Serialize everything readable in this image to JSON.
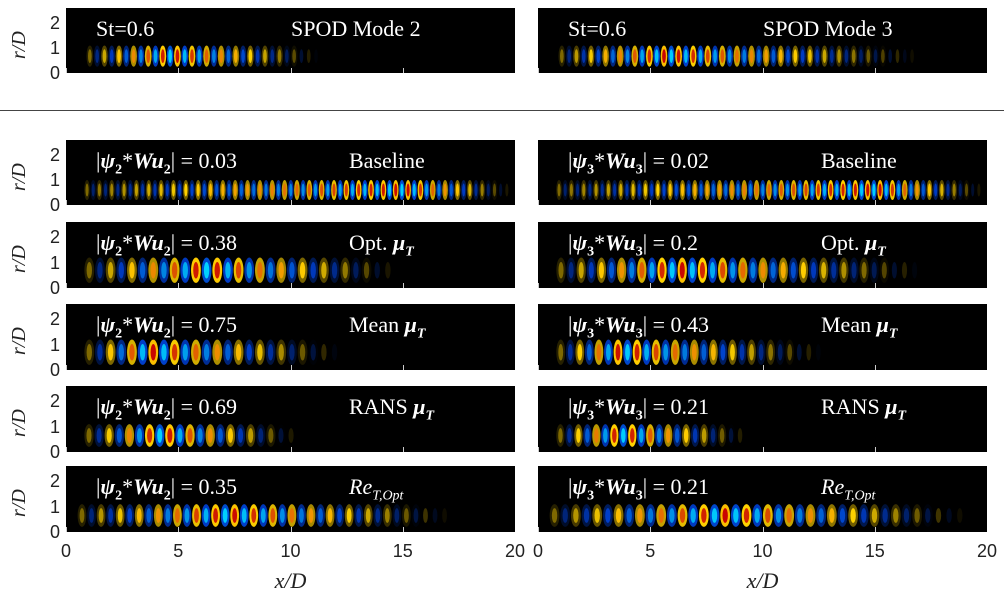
{
  "chart_data": [
    {
      "type": "heatmap",
      "panel": "top-left",
      "labels": [
        "St=0.6",
        "SPOD Mode 2"
      ],
      "ylabel": "r/D",
      "yticks": [
        "2",
        "1",
        "0"
      ],
      "xlim": [
        0,
        20
      ],
      "ylim": [
        0,
        2.6
      ],
      "wave": {
        "start": 0.9,
        "end": 11.5,
        "peak": 4.5,
        "wavelength": 0.65,
        "rmin": 0.25,
        "rmax": 1.1
      }
    },
    {
      "type": "heatmap",
      "panel": "top-right",
      "labels": [
        "St=0.6",
        "SPOD Mode 3"
      ],
      "xlim": [
        0,
        20
      ],
      "ylim": [
        0,
        2.6
      ],
      "wave": {
        "start": 0.9,
        "end": 17.5,
        "peak": 5.5,
        "wavelength": 0.65,
        "rmin": 0.25,
        "rmax": 1.1
      }
    },
    {
      "type": "heatmap",
      "panel": "left-1",
      "labels": [
        "|ψ₂*Wu₂| = 0.03",
        "Baseline"
      ],
      "ylabel": "r/D",
      "yticks": [
        "2",
        "1",
        "0"
      ],
      "xlim": [
        0,
        20
      ],
      "ylim": [
        0,
        2.6
      ],
      "wave": {
        "start": 0.8,
        "end": 20,
        "peak": 15,
        "wavelength": 0.55,
        "rmin": 0.2,
        "rmax": 1.0
      }
    },
    {
      "type": "heatmap",
      "panel": "left-2",
      "labels": [
        "|ψ₂*Wu₂| = 0.38",
        "Opt. μT"
      ],
      "ylabel": "r/D",
      "yticks": [
        "2",
        "1",
        "0"
      ],
      "xlim": [
        0,
        20
      ],
      "ylim": [
        0,
        2.6
      ],
      "wave": {
        "start": 0.8,
        "end": 15,
        "peak": 6,
        "wavelength": 0.95,
        "rmin": 0.2,
        "rmax": 1.2
      }
    },
    {
      "type": "heatmap",
      "panel": "left-3",
      "labels": [
        "|ψ₂*Wu₂| = 0.75",
        "Mean μT"
      ],
      "ylabel": "r/D",
      "yticks": [
        "2",
        "1",
        "0"
      ],
      "xlim": [
        0,
        20
      ],
      "ylim": [
        0,
        2.6
      ],
      "wave": {
        "start": 0.8,
        "end": 12.5,
        "peak": 3.5,
        "wavelength": 0.95,
        "rmin": 0.2,
        "rmax": 1.2
      }
    },
    {
      "type": "heatmap",
      "panel": "left-4",
      "labels": [
        "|ψ₂*Wu₂| = 0.69",
        "RANS μT"
      ],
      "ylabel": "r/D",
      "yticks": [
        "2",
        "1",
        "0"
      ],
      "xlim": [
        0,
        20
      ],
      "ylim": [
        0,
        2.6
      ],
      "wave": {
        "start": 0.8,
        "end": 10.5,
        "peak": 4,
        "wavelength": 0.9,
        "rmin": 0.2,
        "rmax": 1.1
      }
    },
    {
      "type": "heatmap",
      "panel": "left-5",
      "labels": [
        "|ψ₂*Wu₂| = 0.35",
        "ReT,Opt"
      ],
      "ylabel": "r/D",
      "yticks": [
        "2",
        "1",
        "0"
      ],
      "xlim": [
        0,
        20
      ],
      "ylim": [
        0,
        2.6
      ],
      "wave": {
        "start": 0.5,
        "end": 17.5,
        "peak": 7,
        "wavelength": 0.85,
        "rmin": 0.2,
        "rmax": 1.1
      }
    },
    {
      "type": "heatmap",
      "panel": "right-1",
      "labels": [
        "|ψ₃*Wu₃| = 0.02",
        "Baseline"
      ],
      "xlim": [
        0,
        20
      ],
      "ylim": [
        0,
        2.6
      ],
      "wave": {
        "start": 0.8,
        "end": 20,
        "peak": 15,
        "wavelength": 0.55,
        "rmin": 0.2,
        "rmax": 1.0
      }
    },
    {
      "type": "heatmap",
      "panel": "right-2",
      "labels": [
        "|ψ₃*Wu₃| = 0.2",
        "Opt. μT"
      ],
      "xlim": [
        0,
        20
      ],
      "ylim": [
        0,
        2.6
      ],
      "wave": {
        "start": 0.8,
        "end": 17.5,
        "peak": 6,
        "wavelength": 0.9,
        "rmin": 0.2,
        "rmax": 1.2
      }
    },
    {
      "type": "heatmap",
      "panel": "right-3",
      "labels": [
        "|ψ₃*Wu₃| = 0.43",
        "Mean μT"
      ],
      "xlim": [
        0,
        20
      ],
      "ylim": [
        0,
        2.6
      ],
      "wave": {
        "start": 0.8,
        "end": 13,
        "peak": 3.5,
        "wavelength": 0.85,
        "rmin": 0.2,
        "rmax": 1.2
      }
    },
    {
      "type": "heatmap",
      "panel": "right-4",
      "labels": [
        "|ψ₃*Wu₃| = 0.21",
        "RANS μT"
      ],
      "xlim": [
        0,
        20
      ],
      "ylim": [
        0,
        2.6
      ],
      "wave": {
        "start": 0.8,
        "end": 9.5,
        "peak": 3.5,
        "wavelength": 0.8,
        "rmin": 0.2,
        "rmax": 1.1
      }
    },
    {
      "type": "heatmap",
      "panel": "right-5",
      "labels": [
        "|ψ₃*Wu₃| = 0.21",
        "ReT,Opt"
      ],
      "xlim": [
        0,
        20
      ],
      "ylim": [
        0,
        2.6
      ],
      "wave": {
        "start": 0.5,
        "end": 19.5,
        "peak": 8,
        "wavelength": 0.95,
        "rmin": 0.2,
        "rmax": 1.1
      }
    }
  ],
  "xaxis": {
    "ticks": [
      "0",
      "5",
      "10",
      "15",
      "20"
    ],
    "label": "x/D"
  },
  "colormap": [
    "#00c8ff",
    "#0030c0",
    "#000000",
    "#ffd000",
    "#c00000"
  ]
}
